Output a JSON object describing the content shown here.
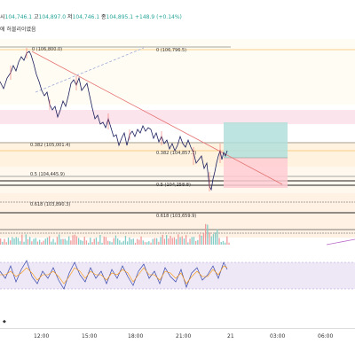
{
  "header": {
    "notice_prefix": "에 허블리이였음",
    "ohlc": [
      {
        "key": "시",
        "value": "104,746.1"
      },
      {
        "key": "고",
        "value": "104,897.0"
      },
      {
        "key": "저",
        "value": "104,746.1"
      },
      {
        "key": "종",
        "value": "104,895.1"
      }
    ],
    "change": "+148.9 (+0.14%)"
  },
  "fib_labels": [
    {
      "ratio": "0",
      "price": "106,800.0",
      "text": "0 (106,800.0)"
    },
    {
      "ratio": "0",
      "price": "106,796.5",
      "text": "0 (106,796.5)"
    },
    {
      "ratio": "0.382",
      "price": "105,001.4",
      "text": "0.382 (105,001.4)"
    },
    {
      "ratio": "0.382",
      "price": "104,857.7",
      "text": "0.382 (104,857.7)"
    },
    {
      "ratio": "0.5",
      "price": "104,445.9",
      "text": "0.5 (104,445.9)"
    },
    {
      "ratio": "0.5",
      "price": "104,258.8",
      "text": "0.5 (104,258.8)"
    },
    {
      "ratio": "0.618",
      "price": "103,890.3",
      "text": "0.618 (103,890.3)"
    },
    {
      "ratio": "0.618",
      "price": "103,659.9",
      "text": "0.618 (103,659.9)"
    }
  ],
  "time_axis": [
    "12:00",
    "15:00",
    "18:00",
    "21:00",
    "21",
    "03:00",
    "06:00"
  ],
  "colors": {
    "bull": "#26a69a",
    "bear": "#ef5350",
    "price_line": "#1b1f5e",
    "trend_line": "#e57373",
    "dashed_trend": "#9fa8da",
    "fib_zone_pink": "#fce4ec",
    "fib_zone_orange": "#fff3e0",
    "tp_zone": "#b2dfdb",
    "sl_zone": "#ffcdd2",
    "oscillator_bg": "#ede7f6"
  }
}
